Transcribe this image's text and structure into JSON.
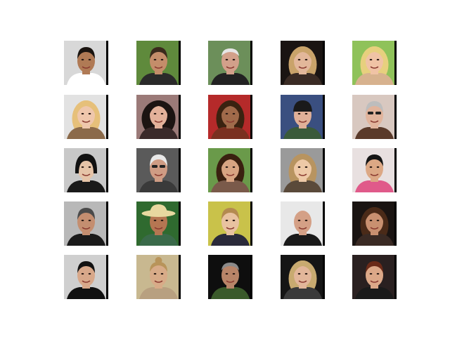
{
  "grid": {
    "rows": 5,
    "cols": 5,
    "tiles": [
      {
        "bg": "#d8d8d8",
        "skin": "#b07a55",
        "hair": "#1a1410",
        "shirt": "#ffffff",
        "jacket": "#1c1c1c",
        "style": "short"
      },
      {
        "bg": "#5f8a3c",
        "skin": "#c48d6a",
        "hair": "#3a2a1c",
        "shirt": "#2a2a2a",
        "jacket": "",
        "style": "short"
      },
      {
        "bg": "#6c8f5a",
        "skin": "#d2a08a",
        "hair": "#e6e6e6",
        "shirt": "#222222",
        "jacket": "",
        "style": "old"
      },
      {
        "bg": "#1a1412",
        "skin": "#e2b79a",
        "hair": "#c9a36a",
        "shirt": "#3a2b24",
        "jacket": "",
        "style": "long"
      },
      {
        "bg": "#8fc25a",
        "skin": "#f0c3a5",
        "hair": "#e7d07e",
        "shirt": "#d7b28e",
        "jacket": "",
        "style": "long"
      },
      {
        "bg": "#e2e2e2",
        "skin": "#efc7ac",
        "hair": "#e6c07a",
        "shirt": "#8b6a4a",
        "jacket": "",
        "style": "long"
      },
      {
        "bg": "#9b7a78",
        "skin": "#e3b19a",
        "hair": "#1c1412",
        "shirt": "#3a2a2a",
        "jacket": "",
        "style": "curly"
      },
      {
        "bg": "#b52a2a",
        "skin": "#a06a4a",
        "hair": "#3a2210",
        "shirt": "#7a3020",
        "jacket": "",
        "style": "long"
      },
      {
        "bg": "#3a4f80",
        "skin": "#e0b098",
        "hair": "#1a1a1a",
        "shirt": "#3a5a3a",
        "jacket": "",
        "style": "cap"
      },
      {
        "bg": "#d8c8c0",
        "skin": "#e1b49c",
        "hair": "#bdbdbd",
        "shirt": "#5a3a2a",
        "jacket": "",
        "style": "glasses"
      },
      {
        "bg": "#c8c8c8",
        "skin": "#e6c4a8",
        "hair": "#111111",
        "shirt": "#1a1a1a",
        "jacket": "",
        "style": "bob"
      },
      {
        "bg": "#5a5a5a",
        "skin": "#cf9c84",
        "hair": "#e8e8e8",
        "shirt": "#3a3a3a",
        "jacket": "",
        "style": "glasses"
      },
      {
        "bg": "#6a9a4a",
        "skin": "#d8a482",
        "hair": "#3a2010",
        "shirt": "#7a5a4a",
        "jacket": "",
        "style": "long"
      },
      {
        "bg": "#9a9a9a",
        "skin": "#eec9a7",
        "hair": "#b89460",
        "shirt": "#5a4a3a",
        "jacket": "",
        "style": "long"
      },
      {
        "bg": "#e8e0e0",
        "skin": "#dca885",
        "hair": "#151515",
        "shirt": "#e05a8a",
        "jacket": "",
        "style": "short"
      },
      {
        "bg": "#b8b8b8",
        "skin": "#c48e70",
        "hair": "#4a4a4a",
        "shirt": "#1a1a1a",
        "jacket": "",
        "style": "short"
      },
      {
        "bg": "#2f6a2f",
        "skin": "#b57652",
        "hair": "#e8d8a0",
        "shirt": "#3a6a4a",
        "jacket": "",
        "style": "hat"
      },
      {
        "bg": "#c9c24a",
        "skin": "#e8c2a0",
        "hair": "#b48a50",
        "shirt": "#2a2a3a",
        "jacket": "",
        "style": "short"
      },
      {
        "bg": "#e8e8e8",
        "skin": "#d4a086",
        "hair": "#d4a086",
        "shirt": "#1a1a1a",
        "jacket": "",
        "style": "bald"
      },
      {
        "bg": "#1a1412",
        "skin": "#c99070",
        "hair": "#4a2a18",
        "shirt": "#3a2a24",
        "jacket": "",
        "style": "long"
      },
      {
        "bg": "#cfcfcf",
        "skin": "#d8a88a",
        "hair": "#121212",
        "shirt": "#111111",
        "jacket": "",
        "style": "short"
      },
      {
        "bg": "#c8b890",
        "skin": "#d8ab88",
        "hair": "#b8945a",
        "shirt": "#b8a080",
        "jacket": "",
        "style": "bun"
      },
      {
        "bg": "#0e0e0e",
        "skin": "#b88468",
        "hair": "#8a8a8a",
        "shirt": "#3a5a2a",
        "jacket": "",
        "style": "old"
      },
      {
        "bg": "#151515",
        "skin": "#e2b69a",
        "hair": "#c8aa70",
        "shirt": "#3a3a3a",
        "jacket": "",
        "style": "long"
      },
      {
        "bg": "#2a2020",
        "skin": "#dca888",
        "hair": "#6a2a18",
        "shirt": "#1a1a1a",
        "jacket": "",
        "style": "short"
      }
    ]
  }
}
